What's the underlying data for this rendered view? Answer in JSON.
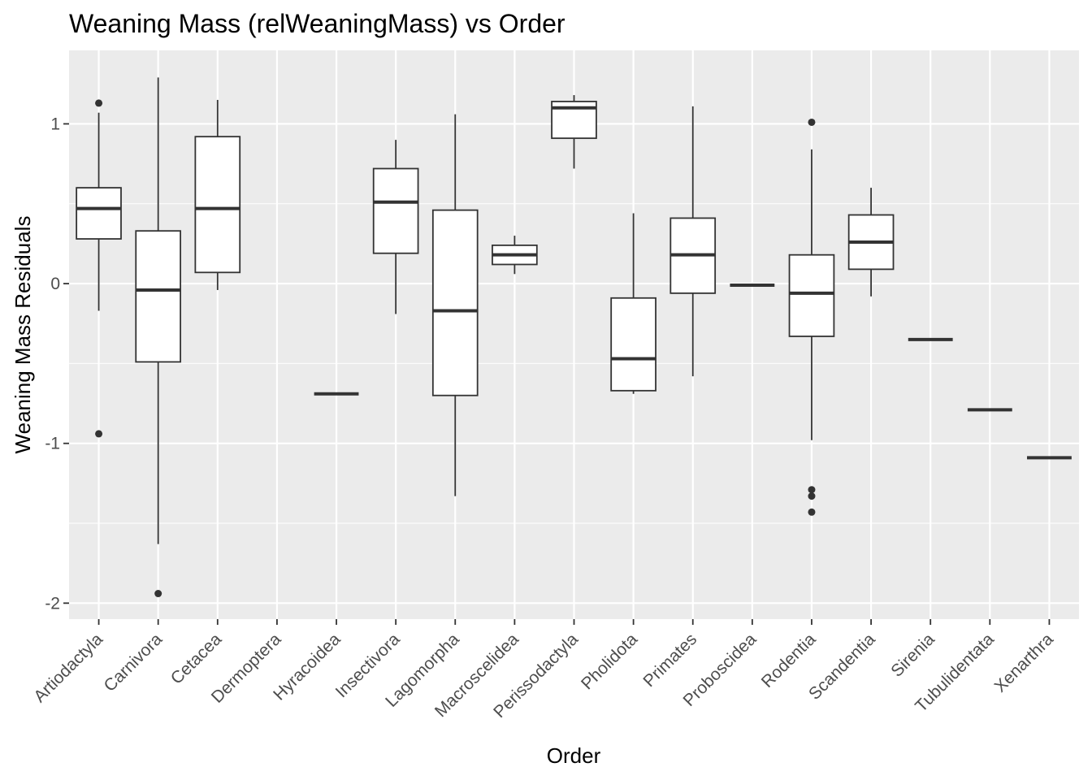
{
  "chart_data": {
    "type": "box",
    "title": "Weaning Mass (relWeaningMass) vs Order",
    "xlabel": "Order",
    "ylabel": "Weaning Mass Residuals",
    "ylim": [
      -2.1,
      1.46
    ],
    "yticks": [
      -2,
      -1,
      0,
      1
    ],
    "grid": true,
    "colors": {
      "panel": "#ebebeb",
      "grid": "#ffffff",
      "box_fill": "#ffffff",
      "box_stroke": "#333333",
      "tick": "#333333",
      "tick_label": "#4d4d4d"
    },
    "categories": [
      "Artiodactyla",
      "Carnivora",
      "Cetacea",
      "Dermoptera",
      "Hyracoidea",
      "Insectivora",
      "Lagomorpha",
      "Macroscelidea",
      "Perissodactyla",
      "Pholidota",
      "Primates",
      "Proboscidea",
      "Rodentia",
      "Scandentia",
      "Sirenia",
      "Tubulidentata",
      "Xenarthra"
    ],
    "boxes": [
      {
        "category": "Artiodactyla",
        "lower_whisker": -0.17,
        "q1": 0.28,
        "median": 0.47,
        "q3": 0.6,
        "upper_whisker": 1.07,
        "outliers": [
          1.13,
          -0.94
        ]
      },
      {
        "category": "Carnivora",
        "lower_whisker": -1.63,
        "q1": -0.49,
        "median": -0.04,
        "q3": 0.33,
        "upper_whisker": 1.29,
        "outliers": [
          -1.94
        ]
      },
      {
        "category": "Cetacea",
        "lower_whisker": -0.04,
        "q1": 0.07,
        "median": 0.47,
        "q3": 0.92,
        "upper_whisker": 1.15,
        "outliers": []
      },
      {
        "category": "Dermoptera",
        "lower_whisker": null,
        "q1": null,
        "median": null,
        "q3": null,
        "upper_whisker": null,
        "outliers": []
      },
      {
        "category": "Hyracoidea",
        "lower_whisker": -0.69,
        "q1": -0.69,
        "median": -0.69,
        "q3": -0.69,
        "upper_whisker": -0.69,
        "outliers": []
      },
      {
        "category": "Insectivora",
        "lower_whisker": -0.19,
        "q1": 0.19,
        "median": 0.51,
        "q3": 0.72,
        "upper_whisker": 0.9,
        "outliers": []
      },
      {
        "category": "Lagomorpha",
        "lower_whisker": -1.33,
        "q1": -0.7,
        "median": -0.17,
        "q3": 0.46,
        "upper_whisker": 1.06,
        "outliers": []
      },
      {
        "category": "Macroscelidea",
        "lower_whisker": 0.06,
        "q1": 0.12,
        "median": 0.18,
        "q3": 0.24,
        "upper_whisker": 0.3,
        "outliers": []
      },
      {
        "category": "Perissodactyla",
        "lower_whisker": 0.72,
        "q1": 0.91,
        "median": 1.1,
        "q3": 1.14,
        "upper_whisker": 1.18,
        "outliers": []
      },
      {
        "category": "Pholidota",
        "lower_whisker": -0.69,
        "q1": -0.67,
        "median": -0.47,
        "q3": -0.09,
        "upper_whisker": 0.44,
        "outliers": []
      },
      {
        "category": "Primates",
        "lower_whisker": -0.58,
        "q1": -0.06,
        "median": 0.18,
        "q3": 0.41,
        "upper_whisker": 1.11,
        "outliers": []
      },
      {
        "category": "Proboscidea",
        "lower_whisker": -0.01,
        "q1": -0.01,
        "median": -0.01,
        "q3": -0.01,
        "upper_whisker": -0.01,
        "outliers": []
      },
      {
        "category": "Rodentia",
        "lower_whisker": -0.98,
        "q1": -0.33,
        "median": -0.06,
        "q3": 0.18,
        "upper_whisker": 0.84,
        "outliers": [
          1.01,
          -1.29,
          -1.33,
          -1.43
        ]
      },
      {
        "category": "Scandentia",
        "lower_whisker": -0.08,
        "q1": 0.09,
        "median": 0.26,
        "q3": 0.43,
        "upper_whisker": 0.6,
        "outliers": []
      },
      {
        "category": "Sirenia",
        "lower_whisker": -0.35,
        "q1": -0.35,
        "median": -0.35,
        "q3": -0.35,
        "upper_whisker": -0.35,
        "outliers": []
      },
      {
        "category": "Tubulidentata",
        "lower_whisker": -0.79,
        "q1": -0.79,
        "median": -0.79,
        "q3": -0.79,
        "upper_whisker": -0.79,
        "outliers": []
      },
      {
        "category": "Xenarthra",
        "lower_whisker": -1.09,
        "q1": -1.09,
        "median": -1.09,
        "q3": -1.09,
        "upper_whisker": -1.09,
        "outliers": []
      }
    ]
  }
}
